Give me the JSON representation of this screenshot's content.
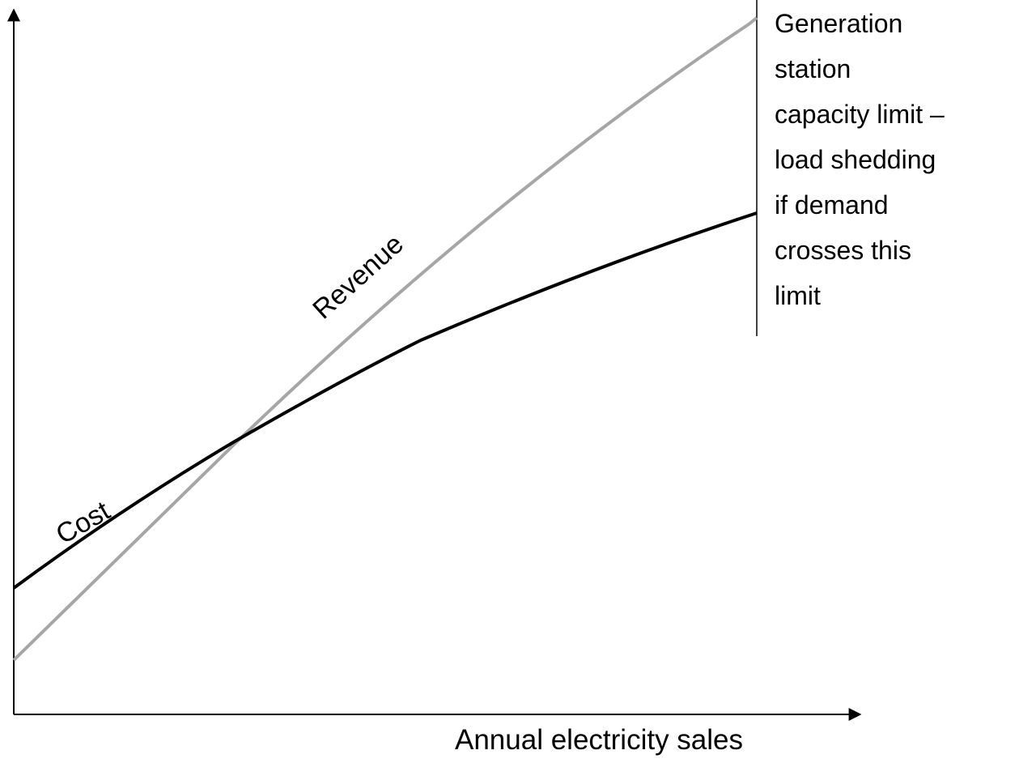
{
  "annotation": {
    "lines": [
      "Generation",
      "station",
      "capacity limit –",
      "load shedding",
      "if demand",
      "crosses this",
      "limit"
    ]
  },
  "curves": {
    "revenue": "Revenue",
    "cost": "Cost"
  },
  "x_axis_label": "Annual electricity sales"
}
